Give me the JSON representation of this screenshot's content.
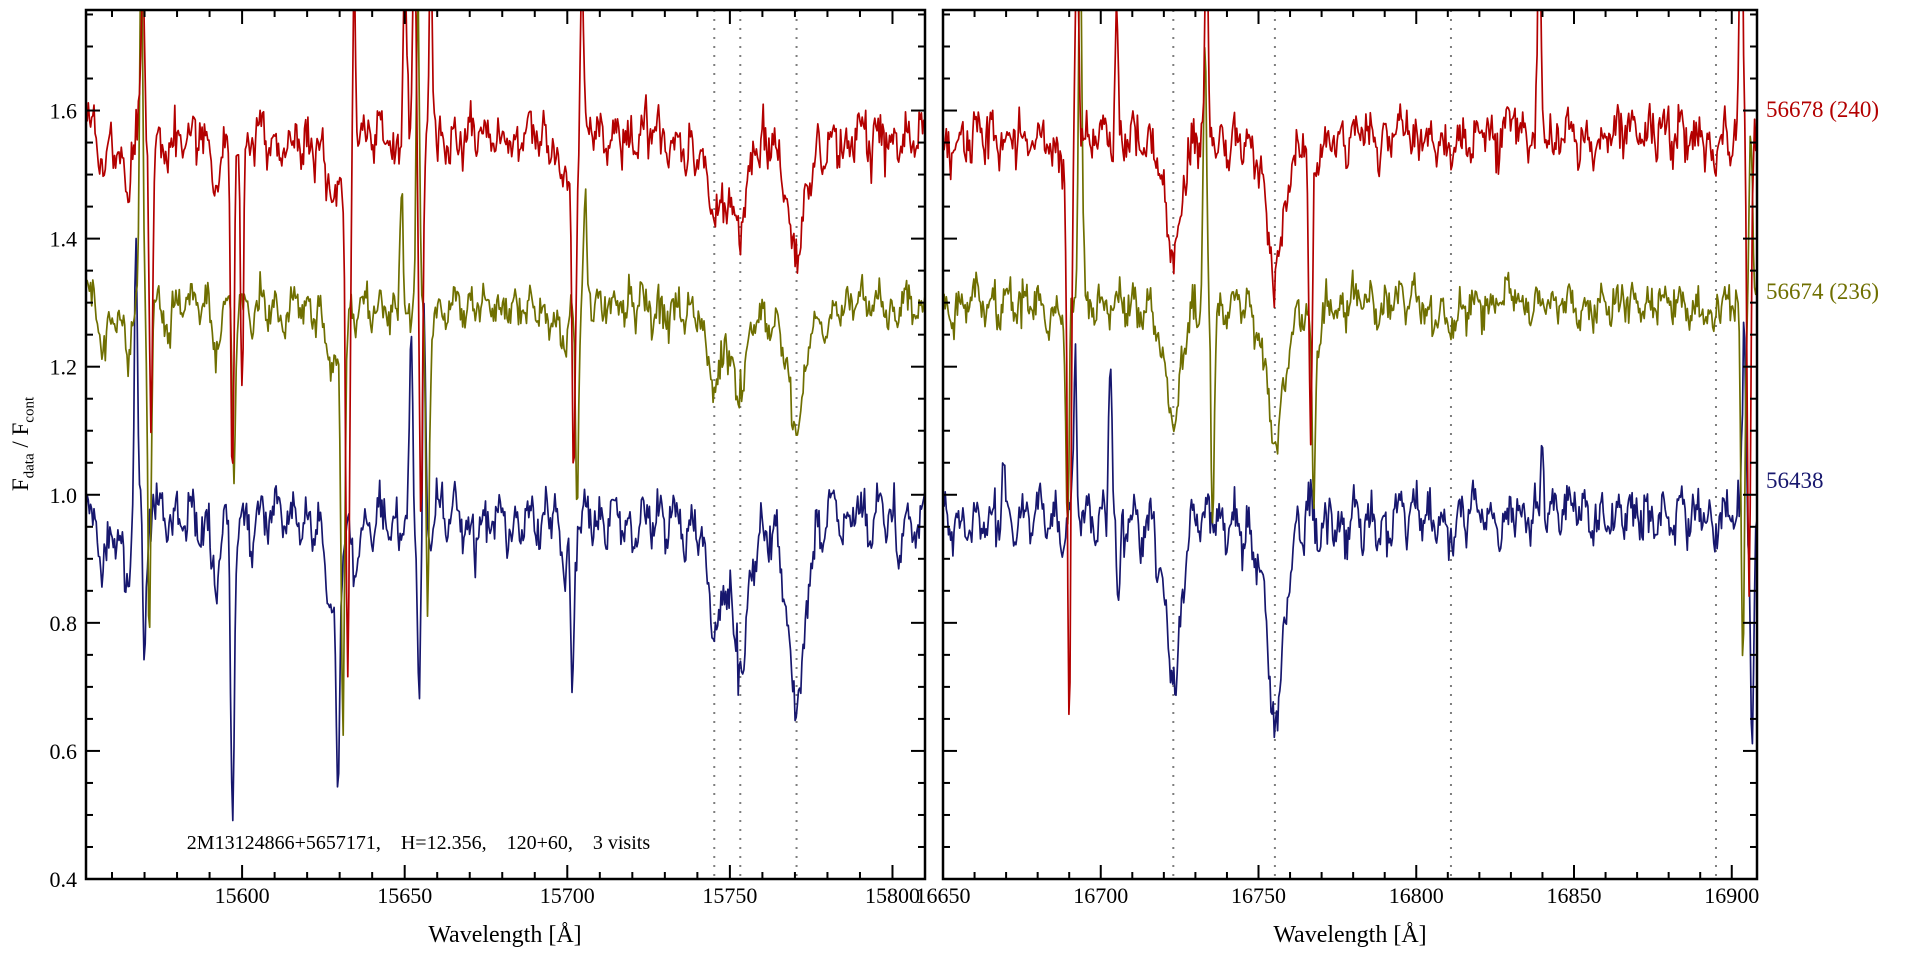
{
  "chart_data": {
    "type": "line",
    "title": "",
    "xlabel": "Wavelength [Å]",
    "ylabel_parts": {
      "f1": "F",
      "sub1": "data",
      "mid": " / F",
      "sub2": "cont"
    },
    "ylim": [
      0.4,
      1.757
    ],
    "yticks": [
      0.4,
      0.6,
      0.8,
      1.0,
      1.2,
      1.4,
      1.6
    ],
    "ytick_labels": [
      "0.4",
      "0.6",
      "0.8",
      "1.0",
      "1.2",
      "1.4",
      "1.6"
    ],
    "y_minor_step": 0.05,
    "sample_step": 0.35,
    "annotation": "2M13124866+5657171,    H=12.356,    120+60,    3 visits",
    "annotation_pos": [
      15583,
      0.455
    ],
    "colors": {
      "reference_line": "#7e7e7e",
      "frame": "#000000"
    },
    "panels": [
      {
        "xlim": [
          15552,
          15810
        ],
        "xticks": [
          15600,
          15650,
          15700,
          15750,
          15800
        ],
        "xtick_labels": [
          "15600",
          "15650",
          "15700",
          "15750",
          "15800"
        ],
        "x_minor_step": 10,
        "dashed_lines": [
          15745.2,
          15753.2,
          15770.5
        ],
        "lines": [
          [
            15557,
            0.1,
            1.2
          ],
          [
            15561,
            0.07,
            1.0
          ],
          [
            15565,
            0.12,
            1.2
          ],
          [
            15571,
            0.06,
            1.0
          ],
          [
            15577,
            0.07,
            1.1
          ],
          [
            15582,
            0.05,
            1.0
          ],
          [
            15587,
            0.06,
            1.0
          ],
          [
            15592,
            0.13,
            1.3
          ],
          [
            15598,
            0.06,
            1.0
          ],
          [
            15603,
            0.07,
            1.0
          ],
          [
            15608,
            0.05,
            1.0
          ],
          [
            15613,
            0.06,
            1.0
          ],
          [
            15618,
            0.05,
            1.0
          ],
          [
            15622,
            0.06,
            1.0
          ],
          [
            15627.5,
            0.16,
            1.8
          ],
          [
            15631,
            0.08,
            1.0
          ],
          [
            15635,
            0.09,
            1.1
          ],
          [
            15640,
            0.06,
            1.0
          ],
          [
            15645,
            0.05,
            1.0
          ],
          [
            15649,
            0.07,
            1.0
          ],
          [
            15653,
            0.06,
            1.0
          ],
          [
            15658,
            0.08,
            1.1
          ],
          [
            15663,
            0.06,
            1.0
          ],
          [
            15668,
            0.05,
            1.0
          ],
          [
            15672,
            0.06,
            1.0
          ],
          [
            15677,
            0.05,
            1.0
          ],
          [
            15682,
            0.06,
            1.0
          ],
          [
            15686,
            0.05,
            1.0
          ],
          [
            15691,
            0.06,
            1.0
          ],
          [
            15695,
            0.05,
            1.0
          ],
          [
            15699,
            0.11,
            1.3
          ],
          [
            15703,
            0.06,
            1.0
          ],
          [
            15708,
            0.05,
            1.0
          ],
          [
            15712,
            0.06,
            1.0
          ],
          [
            15717,
            0.05,
            1.0
          ],
          [
            15721,
            0.06,
            1.0
          ],
          [
            15726,
            0.05,
            1.0
          ],
          [
            15731,
            0.06,
            1.0
          ],
          [
            15736,
            0.07,
            1.0
          ],
          [
            15740,
            0.06,
            1.0
          ],
          [
            15745.2,
            0.2,
            2.0
          ],
          [
            15749,
            0.08,
            1.1
          ],
          [
            15753.2,
            0.24,
            2.1
          ],
          [
            15758,
            0.07,
            1.0
          ],
          [
            15762,
            0.08,
            1.1
          ],
          [
            15766,
            0.08,
            1.0
          ],
          [
            15770.5,
            0.28,
            2.3
          ],
          [
            15775,
            0.07,
            1.0
          ],
          [
            15779,
            0.08,
            1.1
          ],
          [
            15784,
            0.06,
            1.0
          ],
          [
            15788,
            0.05,
            1.0
          ],
          [
            15793,
            0.06,
            1.0
          ],
          [
            15798,
            0.05,
            1.0
          ],
          [
            15802,
            0.07,
            1.0
          ],
          [
            15807,
            0.06,
            1.0
          ]
        ]
      },
      {
        "xlim": [
          16650,
          16908
        ],
        "xticks": [
          16650,
          16700,
          16750,
          16800,
          16850,
          16900
        ],
        "xtick_labels": [
          "16650",
          "16700",
          "16750",
          "16800",
          "16850",
          "16900"
        ],
        "x_minor_step": 10,
        "dashed_lines": [
          16723,
          16755.2,
          16811,
          16895
        ],
        "lines": [
          [
            16653,
            0.06,
            1.0
          ],
          [
            16658,
            0.05,
            1.0
          ],
          [
            16663,
            0.06,
            1.0
          ],
          [
            16668,
            0.05,
            1.0
          ],
          [
            16673,
            0.06,
            1.0
          ],
          [
            16678,
            0.05,
            1.0
          ],
          [
            16683,
            0.06,
            1.0
          ],
          [
            16688,
            0.07,
            1.1
          ],
          [
            16693,
            0.05,
            1.0
          ],
          [
            16698,
            0.06,
            1.0
          ],
          [
            16703,
            0.05,
            1.0
          ],
          [
            16708,
            0.06,
            1.0
          ],
          [
            16713,
            0.07,
            1.0
          ],
          [
            16718,
            0.08,
            1.1
          ],
          [
            16723,
            0.26,
            2.2
          ],
          [
            16727,
            0.07,
            1.0
          ],
          [
            16731,
            0.06,
            1.0
          ],
          [
            16736,
            0.05,
            1.0
          ],
          [
            16740,
            0.06,
            1.0
          ],
          [
            16745,
            0.07,
            1.0
          ],
          [
            16749,
            0.09,
            1.2
          ],
          [
            16755.2,
            0.32,
            2.4
          ],
          [
            16760,
            0.08,
            1.1
          ],
          [
            16764,
            0.07,
            1.0
          ],
          [
            16769,
            0.08,
            1.1
          ],
          [
            16774,
            0.05,
            1.0
          ],
          [
            16778,
            0.06,
            1.0
          ],
          [
            16783,
            0.05,
            1.0
          ],
          [
            16788,
            0.06,
            1.0
          ],
          [
            16792,
            0.05,
            1.0
          ],
          [
            16797,
            0.04,
            1.0
          ],
          [
            16802,
            0.05,
            1.0
          ],
          [
            16806,
            0.04,
            1.0
          ],
          [
            16811,
            0.09,
            1.3
          ],
          [
            16816,
            0.05,
            1.0
          ],
          [
            16821,
            0.04,
            1.0
          ],
          [
            16826,
            0.05,
            1.0
          ],
          [
            16831,
            0.04,
            1.0
          ],
          [
            16836,
            0.05,
            1.0
          ],
          [
            16841,
            0.04,
            1.0
          ],
          [
            16846,
            0.05,
            1.0
          ],
          [
            16851,
            0.04,
            1.0
          ],
          [
            16856,
            0.05,
            1.0
          ],
          [
            16861,
            0.04,
            1.0
          ],
          [
            16866,
            0.05,
            1.0
          ],
          [
            16871,
            0.04,
            1.0
          ],
          [
            16876,
            0.05,
            1.0
          ],
          [
            16881,
            0.04,
            1.0
          ],
          [
            16886,
            0.05,
            1.0
          ],
          [
            16891,
            0.04,
            1.0
          ],
          [
            16895,
            0.07,
            1.2
          ],
          [
            16900,
            0.05,
            1.0
          ],
          [
            16905,
            0.06,
            1.0
          ]
        ]
      }
    ],
    "series": [
      {
        "name": "56438",
        "color": "#17176e",
        "offset": 0.995,
        "noise": 0.016,
        "depth_scale": 1.15,
        "label_flux": 1.02,
        "spikes": [
          [
            [
              15567.3,
              0.42,
              0.5
            ],
            [
              15570,
              -0.2,
              0.45
            ],
            [
              15597,
              -0.46,
              0.55
            ],
            [
              15629.5,
              -0.33,
              0.5
            ],
            [
              15652,
              0.28,
              0.5
            ],
            [
              15654.5,
              -0.28,
              0.5
            ],
            [
              15656,
              0.3,
              0.45
            ],
            [
              15701.5,
              -0.27,
              0.5
            ]
          ],
          [
            [
              16669,
              0.12,
              0.45
            ],
            [
              16692,
              0.25,
              0.5
            ],
            [
              16703,
              0.3,
              0.5
            ],
            [
              16705.5,
              -0.15,
              0.45
            ],
            [
              16840,
              0.1,
              0.45
            ],
            [
              16904,
              0.28,
              0.5
            ],
            [
              16906.5,
              -0.35,
              0.5
            ]
          ]
        ]
      },
      {
        "name": "56674 (236)",
        "color": "#6f6f00",
        "offset": 1.315,
        "noise": 0.014,
        "depth_scale": 0.75,
        "label_flux": 1.315,
        "spikes": [
          [
            [
              15569,
              0.55,
              0.5
            ],
            [
              15571.5,
              -0.5,
              0.5
            ],
            [
              15597.5,
              -0.25,
              0.5
            ],
            [
              15631,
              -0.6,
              0.55
            ],
            [
              15649,
              0.25,
              0.45
            ],
            [
              15654,
              0.5,
              0.5
            ],
            [
              15657,
              -0.45,
              0.5
            ],
            [
              15703,
              -0.3,
              0.5
            ],
            [
              15705.5,
              0.15,
              0.45
            ]
          ],
          [
            [
              16689.5,
              -0.35,
              0.5
            ],
            [
              16693.5,
              0.6,
              0.55
            ],
            [
              16733,
              0.4,
              0.55
            ],
            [
              16735.5,
              -0.33,
              0.5
            ],
            [
              16767.5,
              -0.3,
              0.5
            ],
            [
              16903.5,
              -0.55,
              0.55
            ],
            [
              16906,
              0.3,
              0.5
            ]
          ]
        ]
      },
      {
        "name": "56678 (240)",
        "color": "#b30000",
        "offset": 1.578,
        "noise": 0.017,
        "depth_scale": 0.75,
        "label_flux": 1.6,
        "spikes": [
          [
            [
              15569.5,
              0.25,
              0.5
            ],
            [
              15572,
              -0.45,
              0.5
            ],
            [
              15597,
              -0.55,
              0.5
            ],
            [
              15600,
              -0.4,
              0.45
            ],
            [
              15632.5,
              -0.85,
              0.6
            ],
            [
              15634.5,
              0.3,
              0.45
            ],
            [
              15650,
              0.3,
              0.5
            ],
            [
              15653,
              0.35,
              0.5
            ],
            [
              15655,
              -0.6,
              0.55
            ],
            [
              15658,
              0.35,
              0.5
            ],
            [
              15702,
              -0.5,
              0.55
            ],
            [
              15704.5,
              0.25,
              0.45
            ]
          ],
          [
            [
              16690,
              -0.9,
              0.6
            ],
            [
              16692.5,
              0.35,
              0.5
            ],
            [
              16705,
              0.2,
              0.45
            ],
            [
              16733.5,
              0.35,
              0.5
            ],
            [
              16766.5,
              -0.5,
              0.55
            ],
            [
              16839,
              0.33,
              0.5
            ],
            [
              16903,
              0.45,
              0.5
            ],
            [
              16905.5,
              -0.7,
              0.55
            ]
          ]
        ]
      }
    ]
  }
}
